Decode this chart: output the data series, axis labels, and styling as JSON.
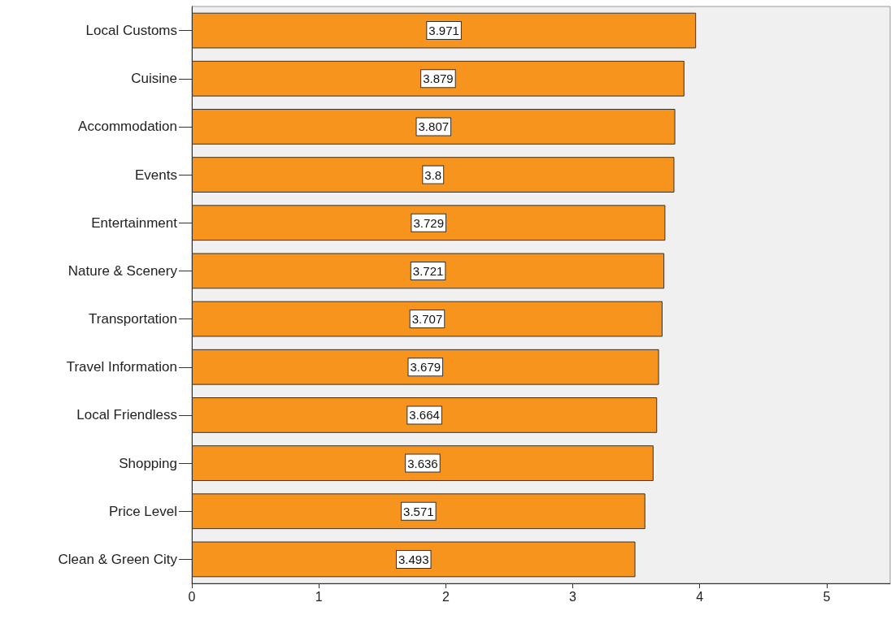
{
  "chart_data": {
    "type": "bar",
    "orientation": "horizontal",
    "categories": [
      "Local Customs",
      "Cuisine",
      "Accommodation",
      "Events",
      "Entertainment",
      "Nature & Scenery",
      "Transportation",
      "Travel Information",
      "Local Friendless",
      "Shopping",
      "Price Level",
      "Clean & Green City"
    ],
    "values": [
      3.971,
      3.879,
      3.807,
      3.8,
      3.729,
      3.721,
      3.707,
      3.679,
      3.664,
      3.636,
      3.571,
      3.493
    ],
    "color": "#f7941d",
    "xlim": [
      0,
      5.5
    ],
    "xticks": [
      0,
      1,
      2,
      3,
      4,
      5
    ],
    "data_labels": true,
    "grid": false
  }
}
